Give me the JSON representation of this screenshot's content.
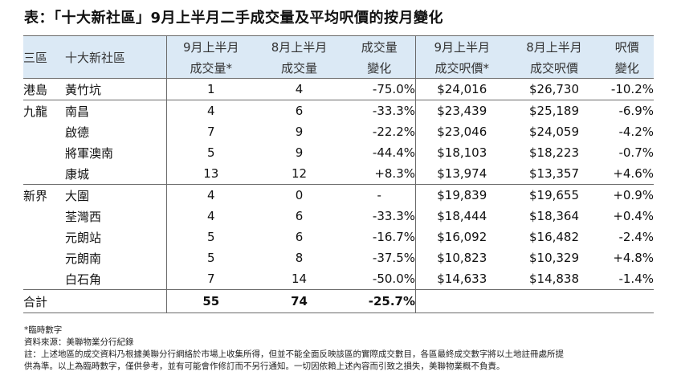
{
  "title": "表：「十大新社區」9月上半月二手成交量及平均呎價的按月變化",
  "headers": {
    "region": "三區",
    "estate": "十大新社區",
    "sep_vol_1": "9月上半月",
    "sep_vol_2": "成交量*",
    "aug_vol_1": "8月上半月",
    "aug_vol_2": "成交量",
    "vol_chg_1": "成交量",
    "vol_chg_2": "變化",
    "sep_price_1": "9月上半月",
    "sep_price_2": "成交呎價*",
    "aug_price_1": "8月上半月",
    "aug_price_2": "成交呎價",
    "price_chg_1": "呎價",
    "price_chg_2": "變化"
  },
  "rows": [
    {
      "region": "港島",
      "estate": "黃竹坑",
      "sep_vol": "1",
      "aug_vol": "4",
      "vol_chg": "-75.0%",
      "sep_price": "$24,016",
      "aug_price": "$26,730",
      "price_chg": "-10.2%"
    },
    {
      "region": "九龍",
      "estate": "南昌",
      "sep_vol": "4",
      "aug_vol": "6",
      "vol_chg": "-33.3%",
      "sep_price": "$23,439",
      "aug_price": "$25,189",
      "price_chg": "-6.9%"
    },
    {
      "region": "",
      "estate": "啟德",
      "sep_vol": "7",
      "aug_vol": "9",
      "vol_chg": "-22.2%",
      "sep_price": "$23,046",
      "aug_price": "$24,059",
      "price_chg": "-4.2%"
    },
    {
      "region": "",
      "estate": "將軍澳南",
      "sep_vol": "5",
      "aug_vol": "9",
      "vol_chg": "-44.4%",
      "sep_price": "$18,103",
      "aug_price": "$18,223",
      "price_chg": "-0.7%"
    },
    {
      "region": "",
      "estate": "康城",
      "sep_vol": "13",
      "aug_vol": "12",
      "vol_chg": "+8.3%",
      "sep_price": "$13,974",
      "aug_price": "$13,357",
      "price_chg": "+4.6%"
    },
    {
      "region": "新界",
      "estate": "大圍",
      "sep_vol": "4",
      "aug_vol": "0",
      "vol_chg": "-",
      "sep_price": "$19,839",
      "aug_price": "$19,655",
      "price_chg": "+0.9%"
    },
    {
      "region": "",
      "estate": "荃灣西",
      "sep_vol": "4",
      "aug_vol": "6",
      "vol_chg": "-33.3%",
      "sep_price": "$18,444",
      "aug_price": "$18,364",
      "price_chg": "+0.4%"
    },
    {
      "region": "",
      "estate": "元朗站",
      "sep_vol": "5",
      "aug_vol": "6",
      "vol_chg": "-16.7%",
      "sep_price": "$16,092",
      "aug_price": "$16,482",
      "price_chg": "-2.4%"
    },
    {
      "region": "",
      "estate": "元朗南",
      "sep_vol": "5",
      "aug_vol": "8",
      "vol_chg": "-37.5%",
      "sep_price": "$10,823",
      "aug_price": "$10,329",
      "price_chg": "+4.8%"
    },
    {
      "region": "",
      "estate": "白石角",
      "sep_vol": "7",
      "aug_vol": "14",
      "vol_chg": "-50.0%",
      "sep_price": "$14,633",
      "aug_price": "$14,838",
      "price_chg": "-1.4%"
    }
  ],
  "total": {
    "label": "合計",
    "sep_vol": "55",
    "aug_vol": "74",
    "vol_chg": "-25.7%"
  },
  "notes": [
    "*臨時數字",
    "資料來源：美聯物業分行紀錄",
    "註：上述地區的成交資料乃根據美聯分行網絡於市場上收集所得，但並不能全面反映該區的實際成交數目，各區最終成交數字將以土地註冊處所提",
    "供為準。以上為臨時數字，僅供參考，並有可能會作修訂而不另行通知。一切因依賴上述內容而引致之損失，美聯物業概不負責。"
  ],
  "colors": {
    "header_bg": "#dbe9f5",
    "rule": "#6a6a6a"
  }
}
